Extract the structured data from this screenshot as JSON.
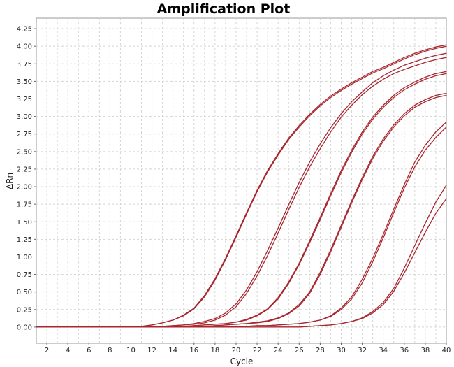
{
  "chart_data": {
    "type": "line",
    "title": "Amplification Plot",
    "xlabel": "Cycle",
    "ylabel": "ΔRn",
    "xlim": [
      1,
      40
    ],
    "ylim": [
      -0.23,
      4.4
    ],
    "x_ticks": [
      2,
      4,
      6,
      8,
      10,
      12,
      14,
      16,
      18,
      20,
      22,
      24,
      26,
      28,
      30,
      32,
      34,
      36,
      38,
      40
    ],
    "x_tick_labels": [
      "2",
      "4",
      "6",
      "8",
      "10",
      "12",
      "14",
      "16",
      "18",
      "20",
      "22",
      "24",
      "26",
      "28",
      "30",
      "32",
      "34",
      "36",
      "38",
      "40"
    ],
    "y_ticks": [
      0.0,
      0.25,
      0.5,
      0.75,
      1.0,
      1.25,
      1.5,
      1.75,
      2.0,
      2.25,
      2.5,
      2.75,
      3.0,
      3.25,
      3.5,
      3.75,
      4.0,
      4.25
    ],
    "y_tick_labels": [
      "0.00",
      "0.25",
      "0.50",
      "0.75",
      "1.00",
      "1.25",
      "1.50",
      "1.75",
      "2.00",
      "2.25",
      "2.50",
      "2.75",
      "3.00",
      "3.25",
      "3.50",
      "3.75",
      "4.00",
      "4.25"
    ],
    "grid": true,
    "line_color": "#a8262e",
    "x": [
      1,
      2,
      3,
      4,
      5,
      6,
      7,
      8,
      9,
      10,
      11,
      12,
      13,
      14,
      15,
      16,
      17,
      18,
      19,
      20,
      21,
      22,
      23,
      24,
      25,
      26,
      27,
      28,
      29,
      30,
      31,
      32,
      33,
      34,
      35,
      36,
      37,
      38,
      39,
      40
    ],
    "series": [
      {
        "values": [
          0.0,
          0.0,
          0.0,
          0.0,
          0.0,
          0.0,
          0.0,
          0.0,
          0.0,
          0.0,
          0.01,
          0.03,
          0.06,
          0.1,
          0.17,
          0.27,
          0.45,
          0.69,
          0.98,
          1.3,
          1.63,
          1.95,
          2.23,
          2.47,
          2.69,
          2.87,
          3.03,
          3.17,
          3.29,
          3.39,
          3.48,
          3.56,
          3.64,
          3.7,
          3.77,
          3.84,
          3.9,
          3.95,
          3.99,
          4.02
        ]
      },
      {
        "values": [
          0.0,
          0.0,
          0.0,
          0.0,
          0.0,
          0.0,
          0.0,
          0.0,
          0.0,
          0.0,
          0.01,
          0.03,
          0.06,
          0.1,
          0.16,
          0.26,
          0.43,
          0.67,
          0.96,
          1.28,
          1.61,
          1.93,
          2.21,
          2.45,
          2.67,
          2.85,
          3.01,
          3.15,
          3.27,
          3.37,
          3.46,
          3.54,
          3.62,
          3.68,
          3.75,
          3.82,
          3.88,
          3.93,
          3.97,
          4.0
        ]
      },
      {
        "values": [
          0.0,
          0.0,
          0.0,
          0.0,
          0.0,
          0.0,
          0.0,
          0.0,
          0.0,
          0.0,
          0.0,
          0.01,
          0.01,
          0.02,
          0.03,
          0.05,
          0.08,
          0.12,
          0.2,
          0.33,
          0.53,
          0.79,
          1.09,
          1.41,
          1.74,
          2.06,
          2.35,
          2.61,
          2.84,
          3.04,
          3.21,
          3.35,
          3.48,
          3.58,
          3.66,
          3.73,
          3.78,
          3.83,
          3.87,
          3.9
        ]
      },
      {
        "values": [
          0.0,
          0.0,
          0.0,
          0.0,
          0.0,
          0.0,
          0.0,
          0.0,
          0.0,
          0.0,
          0.0,
          0.01,
          0.01,
          0.02,
          0.03,
          0.04,
          0.06,
          0.1,
          0.17,
          0.29,
          0.48,
          0.73,
          1.02,
          1.34,
          1.67,
          1.99,
          2.28,
          2.54,
          2.78,
          2.99,
          3.16,
          3.31,
          3.43,
          3.53,
          3.61,
          3.67,
          3.72,
          3.77,
          3.81,
          3.84
        ]
      },
      {
        "values": [
          0.0,
          0.0,
          0.0,
          0.0,
          0.0,
          0.0,
          0.0,
          0.0,
          0.0,
          0.0,
          0.0,
          0.0,
          0.0,
          0.01,
          0.01,
          0.02,
          0.03,
          0.04,
          0.05,
          0.07,
          0.11,
          0.17,
          0.26,
          0.42,
          0.64,
          0.91,
          1.23,
          1.56,
          1.9,
          2.23,
          2.52,
          2.78,
          2.99,
          3.16,
          3.3,
          3.41,
          3.49,
          3.56,
          3.61,
          3.64
        ]
      },
      {
        "values": [
          0.0,
          0.0,
          0.0,
          0.0,
          0.0,
          0.0,
          0.0,
          0.0,
          0.0,
          0.0,
          0.0,
          0.0,
          0.0,
          0.01,
          0.01,
          0.02,
          0.03,
          0.04,
          0.05,
          0.07,
          0.1,
          0.16,
          0.25,
          0.4,
          0.62,
          0.89,
          1.2,
          1.53,
          1.87,
          2.2,
          2.49,
          2.75,
          2.96,
          3.13,
          3.27,
          3.38,
          3.46,
          3.53,
          3.58,
          3.61
        ]
      },
      {
        "values": [
          0.0,
          0.0,
          0.0,
          0.0,
          0.0,
          0.0,
          0.0,
          0.0,
          0.0,
          0.0,
          0.0,
          0.0,
          0.0,
          0.0,
          0.0,
          0.01,
          0.01,
          0.02,
          0.03,
          0.04,
          0.05,
          0.07,
          0.09,
          0.13,
          0.2,
          0.32,
          0.5,
          0.78,
          1.1,
          1.45,
          1.8,
          2.13,
          2.43,
          2.68,
          2.88,
          3.04,
          3.16,
          3.24,
          3.3,
          3.33
        ]
      },
      {
        "values": [
          0.0,
          0.0,
          0.0,
          0.0,
          0.0,
          0.0,
          0.0,
          0.0,
          0.0,
          0.0,
          0.0,
          0.0,
          0.0,
          0.0,
          0.0,
          0.01,
          0.01,
          0.02,
          0.03,
          0.04,
          0.05,
          0.06,
          0.08,
          0.12,
          0.19,
          0.3,
          0.48,
          0.75,
          1.07,
          1.42,
          1.77,
          2.1,
          2.4,
          2.65,
          2.85,
          3.01,
          3.13,
          3.21,
          3.27,
          3.3
        ]
      },
      {
        "values": [
          0.0,
          0.0,
          0.0,
          0.0,
          0.0,
          0.0,
          0.0,
          0.0,
          0.0,
          0.0,
          0.0,
          0.0,
          0.0,
          0.0,
          0.0,
          0.0,
          0.0,
          0.0,
          0.0,
          0.01,
          0.01,
          0.02,
          0.02,
          0.03,
          0.04,
          0.05,
          0.07,
          0.1,
          0.16,
          0.27,
          0.43,
          0.68,
          0.98,
          1.32,
          1.68,
          2.03,
          2.35,
          2.59,
          2.78,
          2.92
        ]
      },
      {
        "values": [
          0.0,
          0.0,
          0.0,
          0.0,
          0.0,
          0.0,
          0.0,
          0.0,
          0.0,
          0.0,
          0.0,
          0.0,
          0.0,
          0.0,
          0.0,
          0.0,
          0.0,
          0.0,
          0.0,
          0.01,
          0.01,
          0.02,
          0.02,
          0.03,
          0.04,
          0.05,
          0.07,
          0.1,
          0.15,
          0.25,
          0.4,
          0.63,
          0.93,
          1.27,
          1.63,
          1.98,
          2.28,
          2.52,
          2.7,
          2.85
        ]
      },
      {
        "values": [
          0.0,
          0.0,
          0.0,
          0.0,
          0.0,
          0.0,
          0.0,
          0.0,
          0.0,
          0.0,
          0.0,
          0.0,
          0.0,
          0.0,
          0.0,
          0.0,
          0.0,
          0.0,
          0.0,
          0.0,
          0.0,
          0.0,
          0.0,
          0.0,
          0.0,
          0.0,
          0.01,
          0.02,
          0.03,
          0.05,
          0.08,
          0.13,
          0.22,
          0.35,
          0.55,
          0.84,
          1.16,
          1.48,
          1.78,
          2.02
        ]
      },
      {
        "values": [
          0.0,
          0.0,
          0.0,
          0.0,
          0.0,
          0.0,
          0.0,
          0.0,
          0.0,
          0.0,
          0.0,
          0.0,
          0.0,
          0.0,
          0.0,
          0.0,
          0.0,
          0.0,
          0.0,
          0.0,
          0.0,
          0.0,
          0.0,
          0.0,
          0.0,
          0.0,
          0.01,
          0.02,
          0.03,
          0.05,
          0.08,
          0.12,
          0.2,
          0.32,
          0.51,
          0.77,
          1.06,
          1.35,
          1.62,
          1.83
        ]
      }
    ]
  }
}
